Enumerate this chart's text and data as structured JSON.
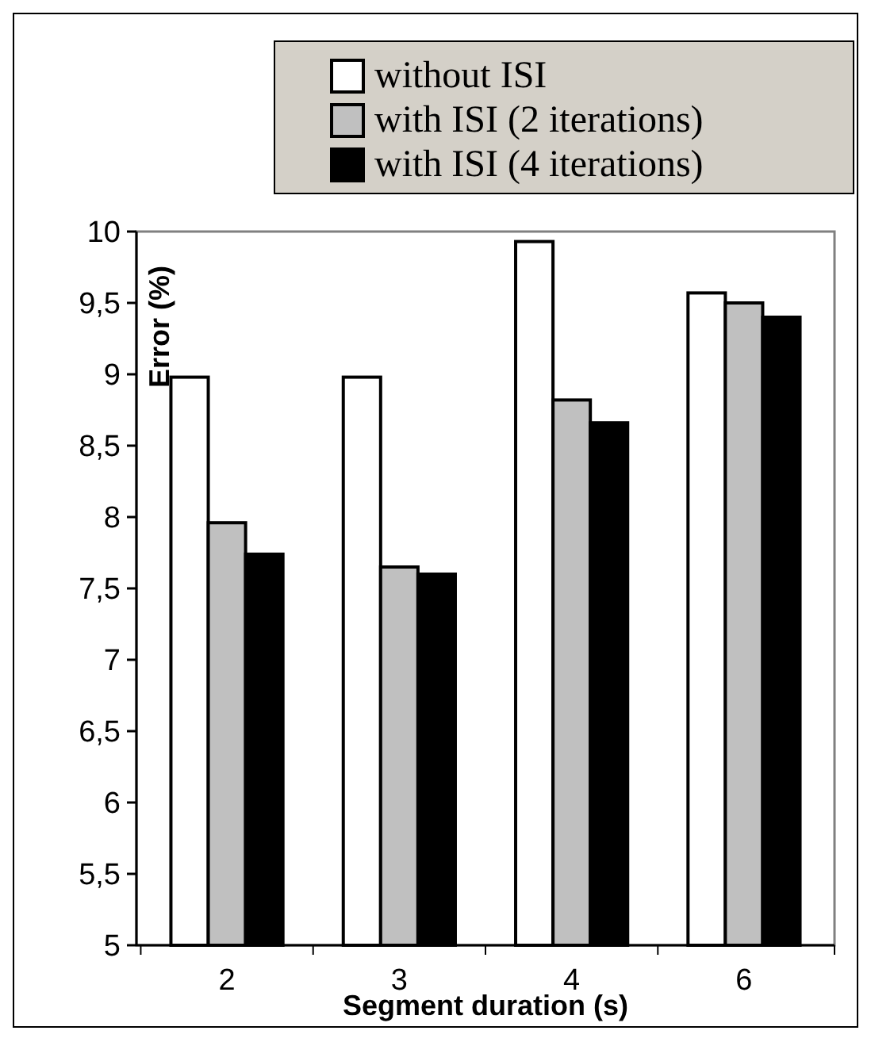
{
  "chart_data": {
    "type": "bar",
    "xlabel": "Segment duration (s)",
    "ylabel": "Error (%)",
    "categories": [
      "2",
      "3",
      "4",
      "6"
    ],
    "series": [
      {
        "name": "without ISI",
        "color": "#ffffff",
        "values": [
          8.98,
          8.98,
          9.93,
          9.57
        ]
      },
      {
        "name": "with ISI (2 iterations)",
        "color": "#c0c0c0",
        "values": [
          7.96,
          7.65,
          8.82,
          9.5
        ]
      },
      {
        "name": "with ISI (4 iterations)",
        "color": "#000000",
        "values": [
          7.74,
          7.6,
          8.66,
          9.4
        ]
      }
    ],
    "ylim": [
      5,
      10
    ],
    "yticks": [
      5,
      {
        "value": 5.5,
        "label": "5,5"
      },
      6,
      {
        "value": 6.5,
        "label": "6,5"
      },
      7,
      {
        "value": 7.5,
        "label": "7,5"
      },
      8,
      {
        "value": 8.5,
        "label": "8,5"
      },
      9,
      {
        "value": 9.5,
        "label": "9,5"
      },
      10
    ],
    "grid": false,
    "legend": "top right"
  }
}
